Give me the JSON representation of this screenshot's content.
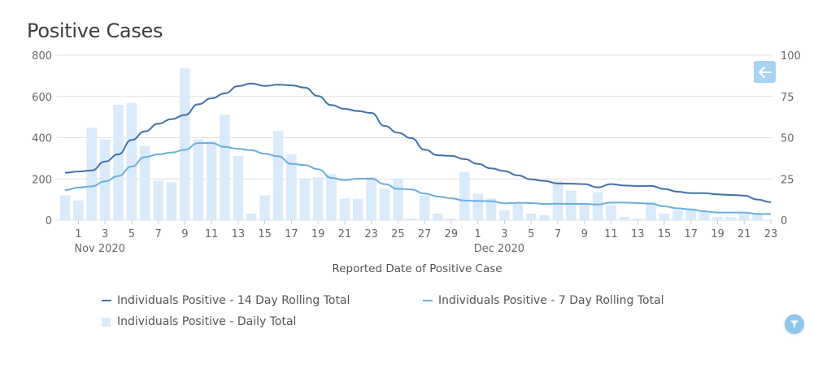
{
  "header": {
    "title": "Positive Cases"
  },
  "controls": {
    "back_icon": "arrow-left-icon",
    "filter_icon": "filter-icon"
  },
  "colors": {
    "rolling14": "#3f72a8",
    "rolling7": "#6aaedc",
    "daily": "#d9eafb",
    "grid": "#e0e0e0",
    "button": "#a9d3f2"
  },
  "chart_data": {
    "type": "bar+line",
    "title": "Positive Cases",
    "xlabel": "Reported Date of Positive Case",
    "ylabel_left": "",
    "ylabel_right": "",
    "y_left_lim": [
      0,
      800
    ],
    "y_left_ticks": [
      "0",
      "200",
      "400",
      "600",
      "800"
    ],
    "y_right_lim": [
      0,
      100
    ],
    "y_right_ticks": [
      "0",
      "25",
      "50",
      "75",
      "100"
    ],
    "grid": true,
    "legend_position": "bottom",
    "x_dates": [
      "Oct 31",
      "Nov 1",
      "Nov 2",
      "Nov 3",
      "Nov 4",
      "Nov 5",
      "Nov 6",
      "Nov 7",
      "Nov 8",
      "Nov 9",
      "Nov 10",
      "Nov 11",
      "Nov 12",
      "Nov 13",
      "Nov 14",
      "Nov 15",
      "Nov 16",
      "Nov 17",
      "Nov 18",
      "Nov 19",
      "Nov 20",
      "Nov 21",
      "Nov 22",
      "Nov 23",
      "Nov 24",
      "Nov 25",
      "Nov 26",
      "Nov 27",
      "Nov 28",
      "Nov 29",
      "Nov 30",
      "Dec 1",
      "Dec 2",
      "Dec 3",
      "Dec 4",
      "Dec 5",
      "Dec 6",
      "Dec 7",
      "Dec 8",
      "Dec 9",
      "Dec 10",
      "Dec 11",
      "Dec 12",
      "Dec 13",
      "Dec 14",
      "Dec 15",
      "Dec 16",
      "Dec 17",
      "Dec 18",
      "Dec 19",
      "Dec 20",
      "Dec 21",
      "Dec 22",
      "Dec 23"
    ],
    "x_tick_labels": [
      {
        "index": 1,
        "label": "1"
      },
      {
        "index": 3,
        "label": "3"
      },
      {
        "index": 5,
        "label": "5"
      },
      {
        "index": 7,
        "label": "7"
      },
      {
        "index": 9,
        "label": "9"
      },
      {
        "index": 11,
        "label": "11"
      },
      {
        "index": 13,
        "label": "13"
      },
      {
        "index": 15,
        "label": "15"
      },
      {
        "index": 17,
        "label": "17"
      },
      {
        "index": 19,
        "label": "19"
      },
      {
        "index": 21,
        "label": "21"
      },
      {
        "index": 23,
        "label": "23"
      },
      {
        "index": 25,
        "label": "25"
      },
      {
        "index": 27,
        "label": "27"
      },
      {
        "index": 29,
        "label": "29"
      },
      {
        "index": 31,
        "label": "1"
      },
      {
        "index": 33,
        "label": "3"
      },
      {
        "index": 35,
        "label": "5"
      },
      {
        "index": 37,
        "label": "7"
      },
      {
        "index": 39,
        "label": "9"
      },
      {
        "index": 41,
        "label": "11"
      },
      {
        "index": 43,
        "label": "13"
      },
      {
        "index": 45,
        "label": "15"
      },
      {
        "index": 47,
        "label": "17"
      },
      {
        "index": 49,
        "label": "19"
      },
      {
        "index": 51,
        "label": "21"
      },
      {
        "index": 53,
        "label": "23"
      }
    ],
    "x_month_labels": [
      {
        "index": 1,
        "label": "Nov 2020"
      },
      {
        "index": 31,
        "label": "Dec 2020"
      }
    ],
    "series": [
      {
        "name": "Individuals Positive - 14 Day Rolling Total",
        "type": "line",
        "axis": "left",
        "values": [
          230,
          236,
          241,
          284,
          319,
          389,
          431,
          468,
          490,
          510,
          562,
          591,
          615,
          650,
          663,
          651,
          657,
          654,
          643,
          602,
          558,
          540,
          529,
          520,
          457,
          424,
          398,
          342,
          315,
          312,
          296,
          273,
          251,
          238,
          217,
          198,
          190,
          178,
          177,
          175,
          159,
          175,
          168,
          166,
          166,
          151,
          138,
          131,
          131,
          125,
          122,
          119,
          100,
          87
        ]
      },
      {
        "name": "Individuals Positive - 7 Day Rolling Total",
        "type": "line",
        "axis": "left",
        "values": [
          146,
          158,
          164,
          188,
          214,
          260,
          306,
          319,
          328,
          342,
          374,
          374,
          355,
          346,
          339,
          322,
          310,
          273,
          267,
          247,
          205,
          194,
          201,
          201,
          175,
          152,
          149,
          129,
          115,
          106,
          95,
          93,
          92,
          82,
          84,
          83,
          79,
          80,
          79,
          79,
          76,
          85,
          85,
          83,
          80,
          67,
          57,
          52,
          43,
          37,
          37,
          37,
          30,
          30
        ]
      },
      {
        "name": "Individuals Positive - Daily Total",
        "type": "bar",
        "axis": "right",
        "values": [
          15,
          12,
          56,
          49,
          70,
          71,
          45,
          24,
          23,
          92,
          49,
          48,
          64,
          39,
          4,
          15,
          54,
          40,
          25,
          26,
          28,
          13,
          13,
          26,
          19,
          25,
          1,
          15,
          4,
          1,
          29,
          16,
          13,
          6,
          10,
          4,
          3,
          24,
          18,
          10,
          17,
          9,
          2,
          1,
          11,
          4,
          6,
          6,
          5,
          2,
          2,
          4,
          4,
          0
        ]
      }
    ]
  },
  "legend": {
    "items": [
      {
        "label": "Individuals Positive - 14 Day Rolling Total"
      },
      {
        "label": "Individuals Positive - 7 Day Rolling Total"
      },
      {
        "label": "Individuals Positive - Daily Total"
      }
    ]
  }
}
